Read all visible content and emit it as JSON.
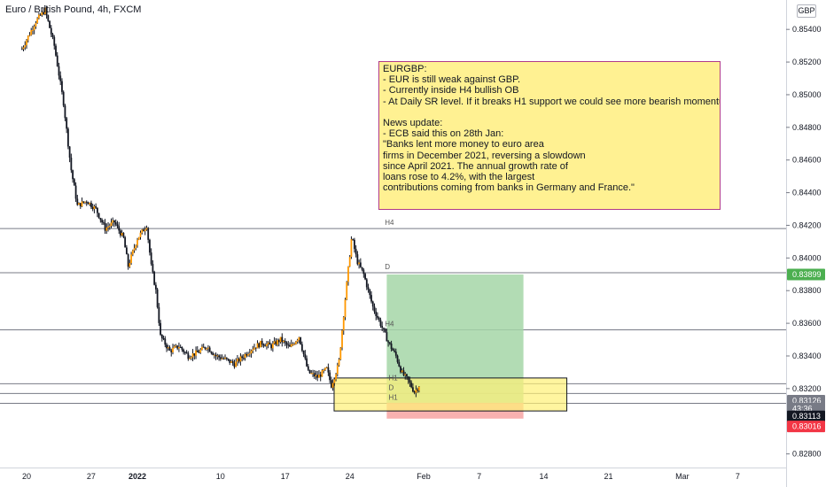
{
  "header": {
    "title": "Euro / British Pound, 4h, FXCM",
    "currency_button": "GBP"
  },
  "note": {
    "text": "EURGBP:\n- EUR is still weak against GBP.\n- Currently inside H4 bullish OB\n- At Daily SR level. If it breaks H1 support we could see more bearish momentum\n\nNews update:\n- ECB said this on 28th Jan:\n\"Banks lent more money to euro area\nfirms in December 2021, reversing a slowdown\nsince April 2021. The annual growth rate of\nloans rose to 4.2%, with the largest\ncontributions coming from banks in Germany and France.\""
  },
  "colors": {
    "bull": "#ff9800",
    "bear": "#131722",
    "level_line": "#787b86",
    "profit_zone": "#a5d6a7",
    "loss_zone": "#f7a9a7",
    "order_block": "#fff176",
    "note_bg": "#fff192",
    "note_border": "#b03a8a",
    "tp_badge": "#4caf50",
    "sl_badge": "#f23645",
    "price_badge": "#787b86"
  },
  "chart_data": {
    "type": "candlestick",
    "title": "Euro / British Pound, 4h, FXCM",
    "currency": "GBP",
    "y_range": [
      0.8276,
      0.8558
    ],
    "y_ticks": [
      "0.85400",
      "0.85200",
      "0.85000",
      "0.84800",
      "0.84600",
      "0.84400",
      "0.84200",
      "0.84000",
      "0.83800",
      "0.83600",
      "0.83400",
      "0.83200",
      "0.82800"
    ],
    "x_ticks": [
      {
        "label": "20",
        "day": 20
      },
      {
        "label": "27",
        "day": 27
      },
      {
        "label": "2022",
        "day": 32
      },
      {
        "label": "10",
        "day": 41
      },
      {
        "label": "17",
        "day": 48
      },
      {
        "label": "24",
        "day": 55
      },
      {
        "label": "Feb",
        "day": 63
      },
      {
        "label": "7",
        "day": 69
      },
      {
        "label": "14",
        "day": 76
      },
      {
        "label": "21",
        "day": 83
      },
      {
        "label": "Mar",
        "day": 91
      },
      {
        "label": "7",
        "day": 97
      }
    ],
    "path_points": [
      [
        19.5,
        0.8528
      ],
      [
        21.0,
        0.8545
      ],
      [
        22.0,
        0.8552
      ],
      [
        23.0,
        0.853
      ],
      [
        24.0,
        0.8495
      ],
      [
        24.8,
        0.8455
      ],
      [
        25.5,
        0.8432
      ],
      [
        26.5,
        0.8435
      ],
      [
        27.5,
        0.843
      ],
      [
        28.5,
        0.8418
      ],
      [
        29.5,
        0.8422
      ],
      [
        30.5,
        0.8412
      ],
      [
        31.0,
        0.8395
      ],
      [
        32.0,
        0.8412
      ],
      [
        33.0,
        0.842
      ],
      [
        33.5,
        0.8395
      ],
      [
        34.0,
        0.838
      ],
      [
        34.5,
        0.8352
      ],
      [
        35.5,
        0.8343
      ],
      [
        36.5,
        0.8346
      ],
      [
        37.5,
        0.834
      ],
      [
        38.5,
        0.8342
      ],
      [
        39.5,
        0.8346
      ],
      [
        40.5,
        0.834
      ],
      [
        41.5,
        0.8338
      ],
      [
        42.5,
        0.8335
      ],
      [
        43.5,
        0.834
      ],
      [
        44.5,
        0.8345
      ],
      [
        45.5,
        0.8348
      ],
      [
        46.5,
        0.8346
      ],
      [
        47.5,
        0.835
      ],
      [
        48.5,
        0.8345
      ],
      [
        49.5,
        0.8352
      ],
      [
        50.5,
        0.833
      ],
      [
        51.5,
        0.8327
      ],
      [
        52.5,
        0.8332
      ],
      [
        53.0,
        0.8322
      ],
      [
        53.8,
        0.8335
      ],
      [
        54.5,
        0.8375
      ],
      [
        55.2,
        0.8413
      ],
      [
        55.8,
        0.8398
      ],
      [
        56.5,
        0.839
      ],
      [
        57.0,
        0.838
      ],
      [
        57.5,
        0.837
      ],
      [
        58.3,
        0.836
      ],
      [
        59.2,
        0.8348
      ],
      [
        60.0,
        0.834
      ],
      [
        60.6,
        0.833
      ],
      [
        61.3,
        0.8325
      ],
      [
        62.0,
        0.8318
      ],
      [
        62.5,
        0.8322
      ]
    ],
    "levels": [
      {
        "label": "H4",
        "price": 0.8418,
        "text_day": 58.8
      },
      {
        "label": "D",
        "price": 0.8391,
        "text_day": 58.8
      },
      {
        "label": "H4",
        "price": 0.8356,
        "text_day": 58.8
      },
      {
        "label": "H1",
        "price": 0.8323,
        "text_day": 59.2
      },
      {
        "label": "D",
        "price": 0.8317,
        "text_day": 59.2
      },
      {
        "label": "H1",
        "price": 0.8311,
        "text_day": 59.2
      }
    ],
    "order_block": {
      "day_start": 53.3,
      "day_end": 78.5,
      "high": 0.83265,
      "low": 0.83063
    },
    "position": {
      "day_start": 59.0,
      "day_end": 73.8,
      "entry": 0.83113,
      "target": 0.83899,
      "stop": 0.83016
    },
    "price_badges": [
      {
        "value": "0.83899",
        "price": 0.83899,
        "kind": "tp"
      },
      {
        "value": "0.83126",
        "price": 0.83126,
        "kind": "last"
      },
      {
        "value": "43:36",
        "price": 0.83078,
        "kind": "timer"
      },
      {
        "value": "0.83113",
        "price": 0.8303,
        "kind": "entry"
      },
      {
        "value": "0.83016",
        "price": 0.82968,
        "kind": "sl"
      }
    ]
  }
}
